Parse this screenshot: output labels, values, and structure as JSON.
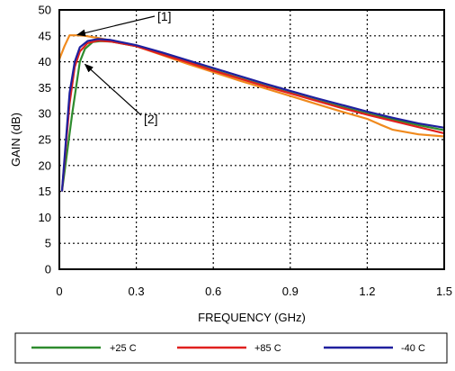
{
  "chart_data": {
    "type": "line",
    "title": "",
    "xlabel": "FREQUENCY (GHz)",
    "ylabel": "GAIN (dB)",
    "xlim": [
      0,
      1.5
    ],
    "ylim": [
      0,
      50
    ],
    "x_ticks": [
      "0",
      "0.3",
      "0.6",
      "0.9",
      "1.2",
      "1.5"
    ],
    "y_ticks": [
      "0",
      "5",
      "10",
      "15",
      "20",
      "25",
      "30",
      "35",
      "40",
      "45",
      "50"
    ],
    "grid": true,
    "legend_position": "bottom",
    "annotations": [
      {
        "label": "[1]",
        "points_to": {
          "x": 0.07,
          "y": 45.2
        }
      },
      {
        "label": "[2]",
        "points_to": {
          "x": 0.1,
          "y": 39.5
        }
      }
    ],
    "series": [
      {
        "name": "+25 C",
        "color": "#2e8b2e",
        "points": [
          [
            0.01,
            15
          ],
          [
            0.05,
            30
          ],
          [
            0.08,
            40
          ],
          [
            0.1,
            42.5
          ],
          [
            0.13,
            43.8
          ],
          [
            0.16,
            44.0
          ],
          [
            0.2,
            43.9
          ],
          [
            0.3,
            43
          ],
          [
            0.4,
            41.6
          ],
          [
            0.5,
            40
          ],
          [
            0.6,
            38.4
          ],
          [
            0.7,
            36.9
          ],
          [
            0.8,
            35.4
          ],
          [
            0.9,
            34.0
          ],
          [
            1.0,
            32.6
          ],
          [
            1.1,
            31.3
          ],
          [
            1.2,
            30.0
          ],
          [
            1.3,
            28.9
          ],
          [
            1.4,
            27.8
          ],
          [
            1.5,
            26.8
          ]
        ]
      },
      {
        "name": "+85 C",
        "color": "#e0201e",
        "points": [
          [
            0.01,
            15
          ],
          [
            0.04,
            32
          ],
          [
            0.06,
            39
          ],
          [
            0.08,
            42
          ],
          [
            0.11,
            43.6
          ],
          [
            0.15,
            44.1
          ],
          [
            0.2,
            43.9
          ],
          [
            0.3,
            43
          ],
          [
            0.4,
            41.4
          ],
          [
            0.5,
            39.9
          ],
          [
            0.6,
            38.3
          ],
          [
            0.7,
            36.8
          ],
          [
            0.8,
            35.3
          ],
          [
            0.9,
            33.9
          ],
          [
            1.0,
            32.5
          ],
          [
            1.1,
            31.1
          ],
          [
            1.2,
            29.8
          ],
          [
            1.3,
            28.6
          ],
          [
            1.4,
            27.4
          ],
          [
            1.5,
            26.2
          ]
        ]
      },
      {
        "name": "-40 C",
        "color": "#1f1f9e",
        "points": [
          [
            0.01,
            15
          ],
          [
            0.04,
            34
          ],
          [
            0.06,
            40
          ],
          [
            0.08,
            42.8
          ],
          [
            0.11,
            44.0
          ],
          [
            0.15,
            44.4
          ],
          [
            0.2,
            44.2
          ],
          [
            0.3,
            43.2
          ],
          [
            0.4,
            41.8
          ],
          [
            0.5,
            40.3
          ],
          [
            0.6,
            38.8
          ],
          [
            0.7,
            37.3
          ],
          [
            0.8,
            35.8
          ],
          [
            0.9,
            34.4
          ],
          [
            1.0,
            33.0
          ],
          [
            1.1,
            31.7
          ],
          [
            1.2,
            30.4
          ],
          [
            1.3,
            29.2
          ],
          [
            1.4,
            28.1
          ],
          [
            1.5,
            27.3
          ]
        ]
      },
      {
        "name": "",
        "color": "#f08a1e",
        "points": [
          [
            0.0,
            40.5
          ],
          [
            0.02,
            43
          ],
          [
            0.04,
            45.1
          ],
          [
            0.07,
            45.1
          ],
          [
            0.1,
            45.0
          ],
          [
            0.15,
            44.6
          ],
          [
            0.2,
            44.1
          ],
          [
            0.3,
            43.0
          ],
          [
            0.4,
            41.3
          ],
          [
            0.5,
            39.6
          ],
          [
            0.6,
            38.0
          ],
          [
            0.7,
            36.4
          ],
          [
            0.8,
            34.9
          ],
          [
            0.9,
            33.4
          ],
          [
            1.0,
            31.9
          ],
          [
            1.1,
            30.4
          ],
          [
            1.2,
            29.0
          ],
          [
            1.25,
            27.9
          ],
          [
            1.3,
            26.9
          ],
          [
            1.4,
            26.0
          ],
          [
            1.5,
            25.6
          ]
        ]
      }
    ]
  }
}
